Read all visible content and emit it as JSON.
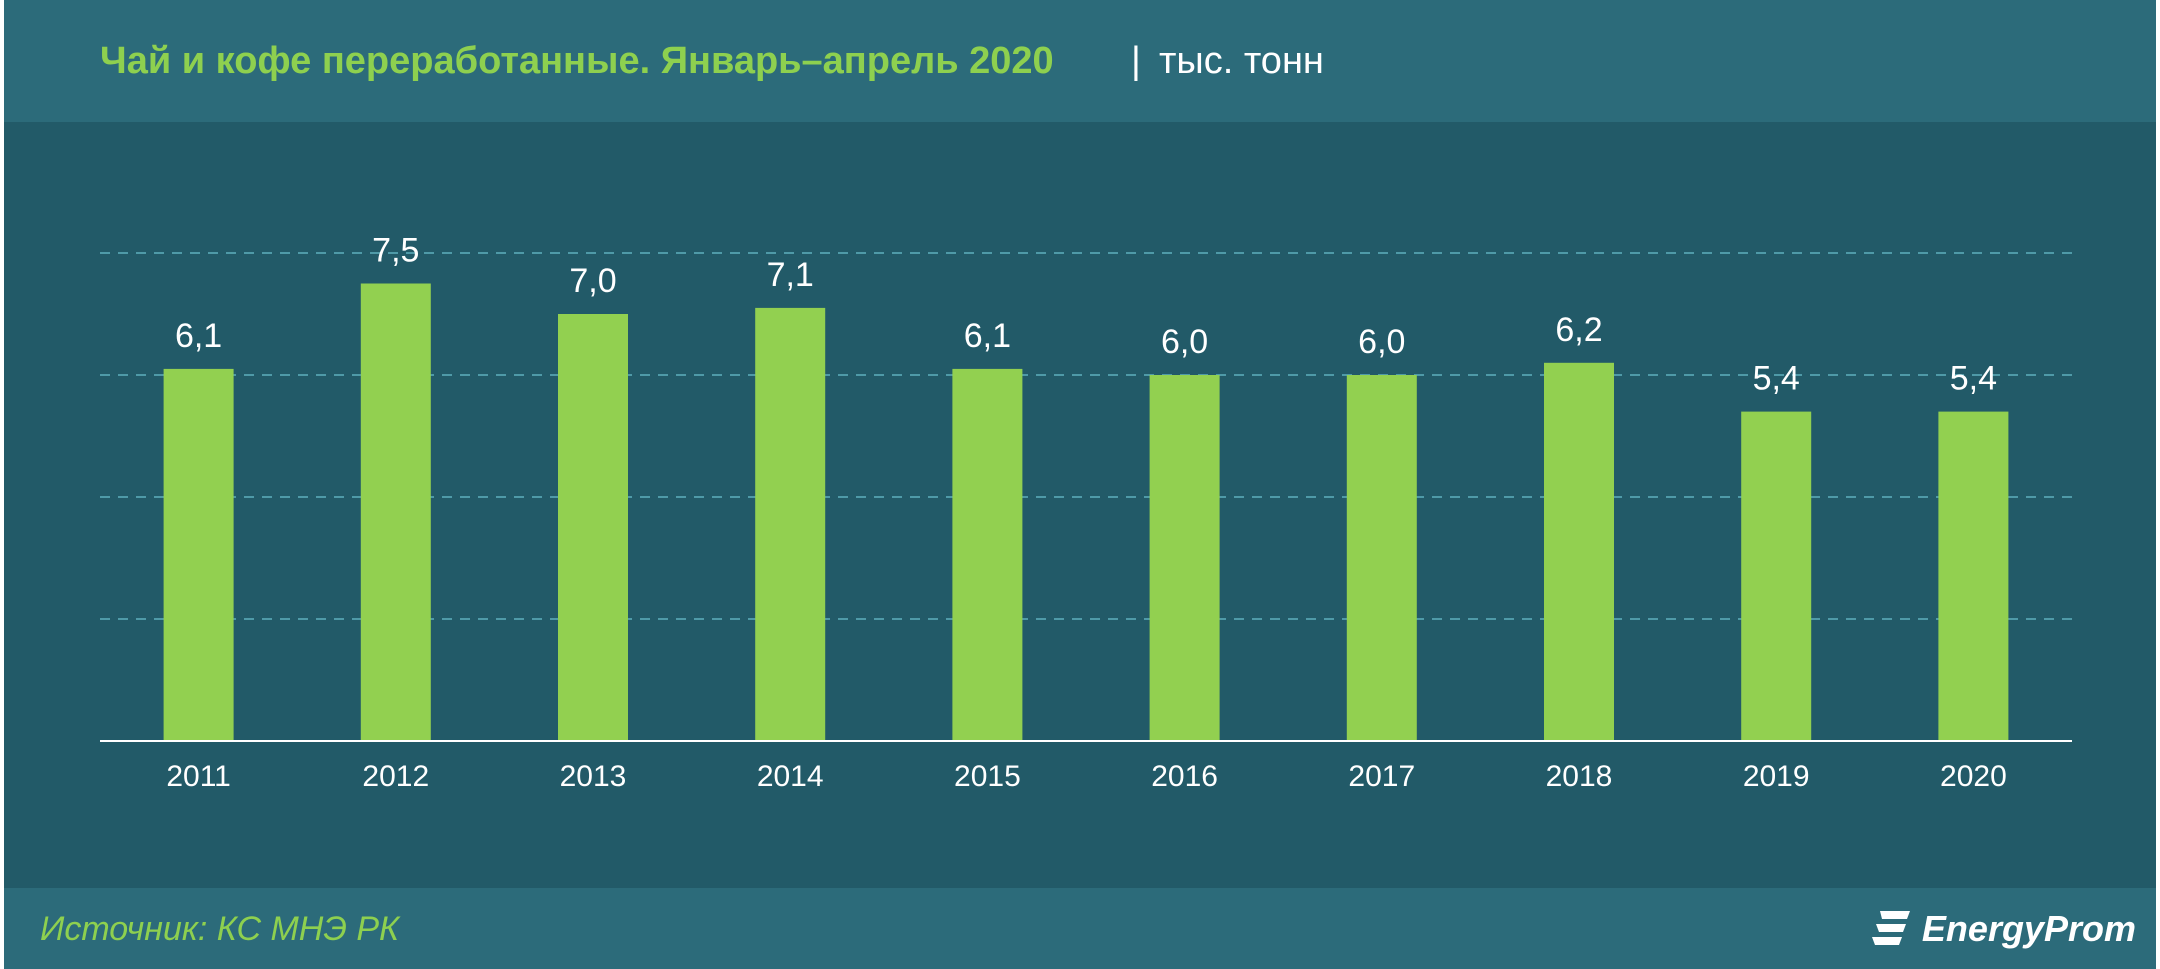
{
  "header": {
    "title": "Чай и кофе переработанные. Январь–апрель 2020",
    "separator": "|",
    "unit": "тыс. тонн"
  },
  "footer": {
    "source": "Источник: КС МНЭ РК",
    "logo_text": "EnergyProm"
  },
  "colors": {
    "bar": "#92d050",
    "background": "#225a68",
    "header_band": "#2c6b7a",
    "accent_text": "#8ed04f",
    "grid": "#4f9aa8"
  },
  "chart_data": {
    "type": "bar",
    "categories": [
      "2011",
      "2012",
      "2013",
      "2014",
      "2015",
      "2016",
      "2017",
      "2018",
      "2019",
      "2020"
    ],
    "values": [
      6.1,
      7.5,
      7.0,
      7.1,
      6.1,
      6.0,
      6.0,
      6.2,
      5.4,
      5.4
    ],
    "labels": [
      "6,1",
      "7,5",
      "7,0",
      "7,1",
      "6,1",
      "6,0",
      "6,0",
      "6,2",
      "5,4",
      "5,4"
    ],
    "grid": true,
    "legend": "none",
    "title": "",
    "xlabel": "",
    "ylabel": ""
  }
}
